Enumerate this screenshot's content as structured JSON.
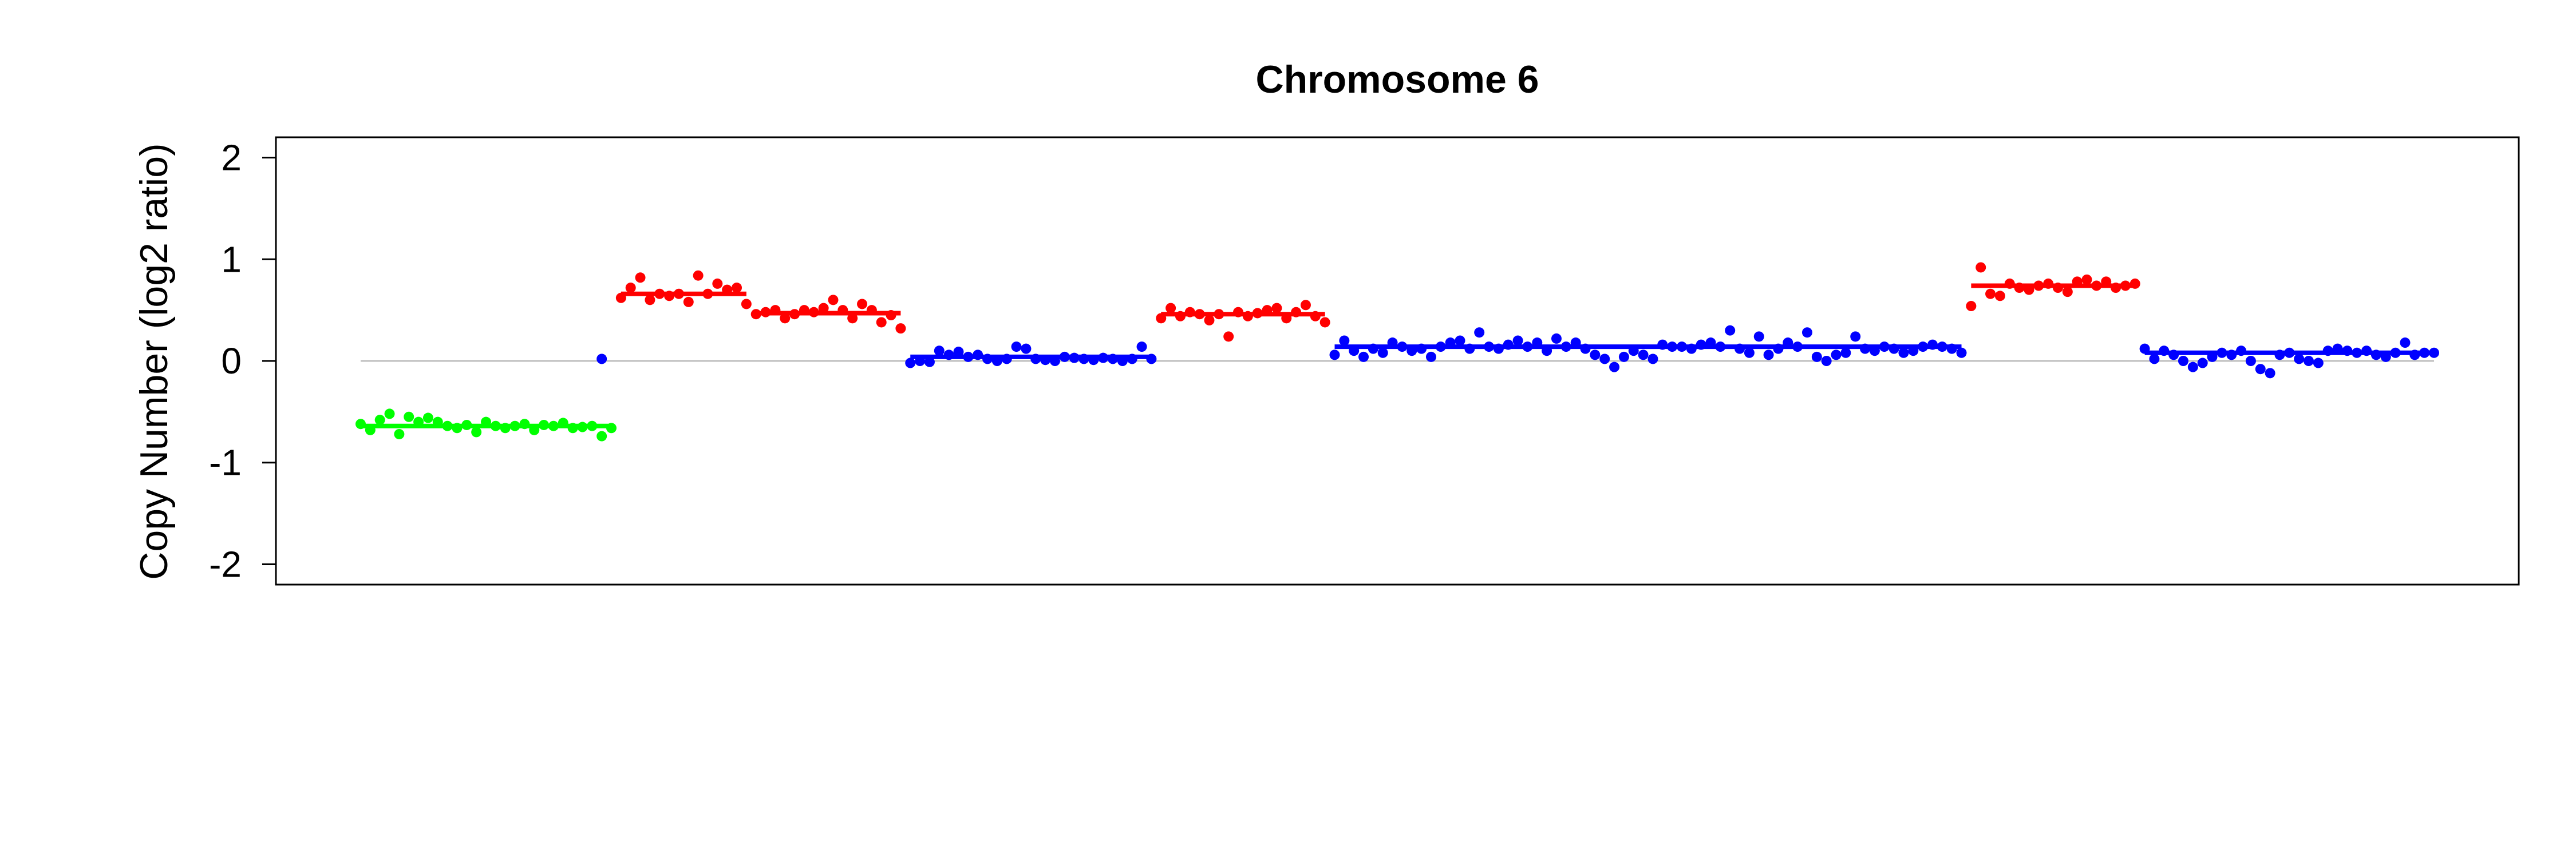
{
  "chart_data": {
    "type": "scatter",
    "title": "Chromosome 6",
    "xlabel": "",
    "ylabel": "Copy Number (log2 ratio)",
    "ylim": [
      -2.2,
      2.2
    ],
    "yticks": [
      -2,
      -1,
      0,
      1,
      2
    ],
    "ytick_labels": [
      "-2",
      "-1",
      "0",
      "1",
      "2"
    ],
    "grid": false,
    "baseline": 0,
    "colors": {
      "gain": "#ff0000",
      "loss": "#00ff00",
      "neutral": "#0000ff",
      "baseline": "#bfbfbf"
    },
    "segments": [
      {
        "status": "loss",
        "x_start": 1,
        "x_end": 27,
        "mean": -0.64,
        "points": [
          -0.62,
          -0.68,
          -0.58,
          -0.52,
          -0.72,
          -0.55,
          -0.6,
          -0.56,
          -0.6,
          -0.64,
          -0.66,
          -0.63,
          -0.7,
          -0.6,
          -0.64,
          -0.66,
          -0.64,
          -0.62,
          -0.68,
          -0.63,
          -0.64,
          -0.61,
          -0.66,
          -0.65,
          -0.64,
          -0.74,
          -0.66
        ]
      },
      {
        "status": "neutral",
        "x_start": 26,
        "x_end": 26,
        "mean": 0.02,
        "points": [
          0.02
        ]
      },
      {
        "status": "gain",
        "x_start": 28,
        "x_end": 41,
        "mean": 0.66,
        "points": [
          0.62,
          0.72,
          0.82,
          0.6,
          0.66,
          0.64,
          0.66,
          0.58,
          0.84,
          0.66,
          0.76,
          0.7,
          0.72,
          0.56
        ]
      },
      {
        "status": "gain",
        "x_start": 42,
        "x_end": 57,
        "mean": 0.47,
        "points": [
          0.46,
          0.48,
          0.5,
          0.42,
          0.46,
          0.5,
          0.48,
          0.52,
          0.6,
          0.5,
          0.42,
          0.56,
          0.5,
          0.38,
          0.45,
          0.32
        ]
      },
      {
        "status": "neutral",
        "x_start": 58,
        "x_end": 83,
        "mean": 0.04,
        "points": [
          -0.02,
          0.0,
          -0.01,
          0.1,
          0.06,
          0.09,
          0.04,
          0.06,
          0.02,
          0.0,
          0.02,
          0.14,
          0.12,
          0.02,
          0.01,
          0.0,
          0.04,
          0.03,
          0.02,
          0.01,
          0.03,
          0.02,
          0.0,
          0.02,
          0.14,
          0.02
        ]
      },
      {
        "status": "gain",
        "x_start": 84,
        "x_end": 101,
        "mean": 0.46,
        "points": [
          0.42,
          0.52,
          0.44,
          0.48,
          0.46,
          0.4,
          0.46,
          0.24,
          0.48,
          0.44,
          0.47,
          0.5,
          0.52,
          0.42,
          0.48,
          0.55,
          0.44,
          0.38
        ]
      },
      {
        "status": "neutral",
        "x_start": 102,
        "x_end": 167,
        "mean": 0.14,
        "points": [
          0.06,
          0.2,
          0.1,
          0.04,
          0.12,
          0.08,
          0.18,
          0.14,
          0.1,
          0.12,
          0.04,
          0.14,
          0.18,
          0.2,
          0.12,
          0.28,
          0.14,
          0.12,
          0.16,
          0.2,
          0.14,
          0.18,
          0.1,
          0.22,
          0.14,
          0.18,
          0.12,
          0.06,
          0.02,
          -0.06,
          0.04,
          0.1,
          0.06,
          0.02,
          0.16,
          0.14,
          0.14,
          0.12,
          0.16,
          0.18,
          0.14,
          0.3,
          0.12,
          0.08,
          0.24,
          0.06,
          0.12,
          0.18,
          0.14,
          0.28,
          0.04,
          0.0,
          0.06,
          0.08,
          0.24,
          0.12,
          0.1,
          0.14,
          0.12,
          0.08,
          0.1,
          0.14,
          0.16,
          0.14,
          0.12,
          0.08
        ]
      },
      {
        "status": "gain",
        "x_start": 168,
        "x_end": 185,
        "mean": 0.74,
        "points": [
          0.54,
          0.92,
          0.66,
          0.64,
          0.76,
          0.72,
          0.7,
          0.74,
          0.76,
          0.72,
          0.68,
          0.78,
          0.8,
          0.74,
          0.78,
          0.72,
          0.74,
          0.76
        ]
      },
      {
        "status": "neutral",
        "x_start": 186,
        "x_end": 216,
        "mean": 0.08,
        "points": [
          0.12,
          0.02,
          0.1,
          0.06,
          0.0,
          -0.06,
          -0.02,
          0.04,
          0.08,
          0.06,
          0.1,
          0.0,
          -0.08,
          -0.12,
          0.06,
          0.08,
          0.02,
          0.0,
          -0.02,
          0.1,
          0.12,
          0.1,
          0.08,
          0.1,
          0.06,
          0.04,
          0.08,
          0.18,
          0.06,
          0.08,
          0.08
        ]
      }
    ]
  }
}
